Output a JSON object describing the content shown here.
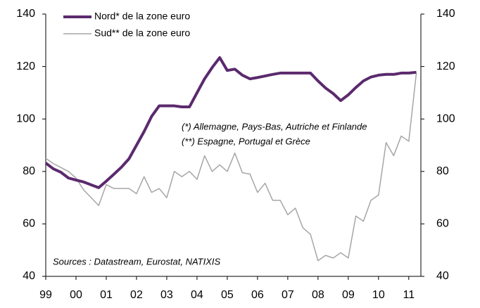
{
  "chart_data": {
    "type": "line",
    "annotations": [
      "(*) Allemagne, Pays-Bas, Autriche et Finlande",
      "(**) Espagne, Portugal et Grèce",
      "Sources : Datastream, Eurostat, NATIXIS"
    ],
    "x": [
      1999,
      1999.25,
      1999.5,
      1999.75,
      2000,
      2000.25,
      2000.5,
      2000.75,
      2001,
      2001.25,
      2001.5,
      2001.75,
      2002,
      2002.25,
      2002.5,
      2002.75,
      2003,
      2003.25,
      2003.5,
      2003.75,
      2004,
      2004.25,
      2004.5,
      2004.75,
      2005,
      2005.25,
      2005.5,
      2005.75,
      2006,
      2006.25,
      2006.5,
      2006.75,
      2007,
      2007.25,
      2007.5,
      2007.75,
      2008,
      2008.25,
      2008.5,
      2008.75,
      2009,
      2009.25,
      2009.5,
      2009.75,
      2010,
      2010.25,
      2010.5,
      2010.75,
      2011,
      2011.25
    ],
    "series": [
      {
        "name": "Nord* de la zone euro",
        "color": "#5b2a6e",
        "width": 4,
        "values": [
          83.2,
          81,
          79.7,
          77.5,
          76.7,
          76,
          74.9,
          73.8,
          76.3,
          78.9,
          81.6,
          84.8,
          90,
          95.2,
          101,
          105,
          105,
          105,
          104.6,
          104.6,
          110,
          115.3,
          119.6,
          123.4,
          118.5,
          119,
          116.7,
          115.3,
          115.8,
          116.4,
          117,
          117.5,
          117.5,
          117.5,
          117.5,
          117.5,
          114.5,
          111.8,
          109.7,
          107,
          109.2,
          112,
          114.5,
          116,
          116.7,
          117,
          117,
          117.5,
          117.5,
          117.8
        ]
      },
      {
        "name": "Sud** de la zone euro",
        "color": "#a6a6a6",
        "width": 1.5,
        "values": [
          85,
          83,
          81.5,
          80,
          77.5,
          73,
          70,
          67,
          75,
          73.5,
          73.5,
          73.5,
          71.5,
          78,
          72,
          73.5,
          70,
          80,
          78,
          80,
          77,
          86,
          80,
          82.5,
          80,
          87,
          79.5,
          79,
          72,
          75.5,
          69,
          69,
          63.5,
          66,
          58.5,
          56,
          46,
          48,
          47,
          49,
          47,
          63,
          61,
          69,
          71,
          91,
          86,
          93.5,
          91.5,
          117.5
        ]
      }
    ],
    "xlim": [
      1999,
      2011.4
    ],
    "xticks": [
      {
        "value": 1999,
        "label": "99"
      },
      {
        "value": 2000,
        "label": "00"
      },
      {
        "value": 2001,
        "label": "01"
      },
      {
        "value": 2002,
        "label": "02"
      },
      {
        "value": 2003,
        "label": "03"
      },
      {
        "value": 2004,
        "label": "04"
      },
      {
        "value": 2005,
        "label": "05"
      },
      {
        "value": 2006,
        "label": "06"
      },
      {
        "value": 2007,
        "label": "07"
      },
      {
        "value": 2008,
        "label": "08"
      },
      {
        "value": 2009,
        "label": "09"
      },
      {
        "value": 2010,
        "label": "10"
      },
      {
        "value": 2011,
        "label": "11"
      }
    ],
    "ylim": [
      40,
      140
    ],
    "yticks": [
      40,
      60,
      80,
      100,
      120,
      140
    ],
    "y2lim": [
      40,
      140
    ],
    "y2ticks": [
      40,
      60,
      80,
      100,
      120,
      140
    ],
    "grid": false,
    "legend": "top-left"
  }
}
